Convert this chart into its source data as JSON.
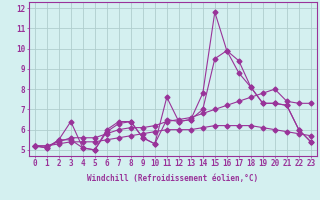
{
  "xlabel": "Windchill (Refroidissement éolien,°C)",
  "background_color": "#d4f0f0",
  "grid_color": "#b0cece",
  "line_color": "#993399",
  "x_values": [
    0,
    1,
    2,
    3,
    4,
    5,
    6,
    7,
    8,
    9,
    10,
    11,
    12,
    13,
    14,
    15,
    16,
    17,
    18,
    19,
    20,
    21,
    22,
    23
  ],
  "series1": [
    5.2,
    5.1,
    5.5,
    6.4,
    5.1,
    5.0,
    6.0,
    6.4,
    6.4,
    5.6,
    5.3,
    7.6,
    6.4,
    6.5,
    7.8,
    11.8,
    9.9,
    9.4,
    8.1,
    7.3,
    7.3,
    7.2,
    6.0,
    5.4
  ],
  "series2": [
    5.2,
    5.1,
    5.5,
    5.5,
    5.1,
    5.0,
    5.9,
    6.3,
    6.4,
    5.6,
    5.3,
    6.5,
    6.4,
    6.5,
    7.0,
    9.5,
    9.9,
    8.8,
    8.1,
    7.3,
    7.3,
    7.2,
    6.0,
    5.4
  ],
  "trend1": [
    5.2,
    5.2,
    5.4,
    5.6,
    5.6,
    5.6,
    5.8,
    6.0,
    6.1,
    6.1,
    6.2,
    6.4,
    6.5,
    6.6,
    6.8,
    7.0,
    7.2,
    7.4,
    7.6,
    7.8,
    8.0,
    7.4,
    7.3,
    7.3
  ],
  "trend2": [
    5.2,
    5.2,
    5.3,
    5.4,
    5.4,
    5.4,
    5.5,
    5.6,
    5.7,
    5.8,
    5.9,
    6.0,
    6.0,
    6.0,
    6.1,
    6.2,
    6.2,
    6.2,
    6.2,
    6.1,
    6.0,
    5.9,
    5.8,
    5.7
  ],
  "ylim": [
    4.7,
    12.3
  ],
  "xlim": [
    -0.5,
    23.5
  ],
  "yticks": [
    5,
    6,
    7,
    8,
    9,
    10,
    11,
    12
  ],
  "xticks": [
    0,
    1,
    2,
    3,
    4,
    5,
    6,
    7,
    8,
    9,
    10,
    11,
    12,
    13,
    14,
    15,
    16,
    17,
    18,
    19,
    20,
    21,
    22,
    23
  ],
  "tick_fontsize": 5.5,
  "label_fontsize": 5.5
}
